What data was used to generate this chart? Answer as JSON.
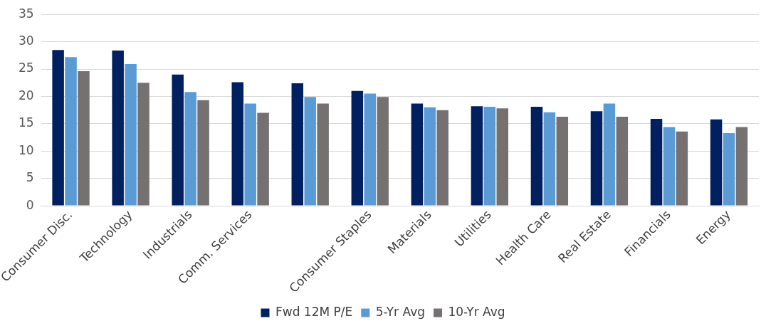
{
  "chart_data": {
    "type": "bar",
    "categories": [
      "Consumer Disc.",
      "Technology",
      "Industrials",
      "Comm. Services",
      null,
      "Consumer Staples",
      "Materials",
      "Utilities",
      "Health Care",
      "Real Estate",
      "Financials",
      "Energy"
    ],
    "series": [
      {
        "name": "Fwd 12M P/E",
        "color": "#002060",
        "values": [
          28.5,
          28.4,
          24.0,
          22.6,
          22.4,
          21.0,
          18.7,
          18.2,
          18.1,
          17.3,
          15.9,
          15.8
        ]
      },
      {
        "name": "5-Yr Avg",
        "color": "#5b9bd5",
        "values": [
          27.2,
          25.9,
          20.8,
          18.7,
          19.9,
          20.5,
          18.0,
          18.1,
          17.1,
          18.7,
          14.4,
          13.3
        ]
      },
      {
        "name": "10-Yr Avg",
        "color": "#767171",
        "values": [
          24.6,
          22.5,
          19.3,
          17.0,
          18.7,
          19.9,
          17.5,
          17.8,
          16.3,
          16.3,
          13.6,
          14.4
        ]
      }
    ],
    "ylim": [
      0,
      35
    ],
    "yticks": [
      0,
      5,
      10,
      15,
      20,
      25,
      30,
      35
    ],
    "grid": "y",
    "legend": "bottom"
  }
}
